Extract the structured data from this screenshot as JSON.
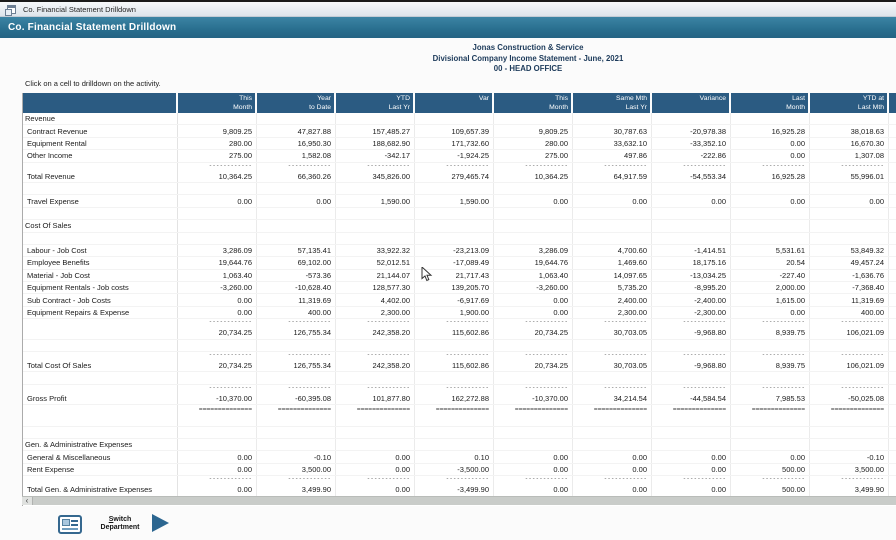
{
  "window": {
    "tab_title": "Co. Financial Statement Drilldown",
    "title_bar": "Co. Financial Statement Drilldown"
  },
  "report": {
    "company": "Jonas Construction & Service",
    "statement_title": "Divisional Company Income Statement - June, 2021",
    "division": "00 - HEAD OFFICE",
    "hint": "Click on a cell to drilldown on the activity."
  },
  "table": {
    "columns": [
      {
        "l1": "This",
        "l2": "Month"
      },
      {
        "l1": "Year",
        "l2": "to Date"
      },
      {
        "l1": "YTD",
        "l2": "Last Yr"
      },
      {
        "l1": "Var",
        "l2": ""
      },
      {
        "l1": "This",
        "l2": "Month"
      },
      {
        "l1": "Same Mth",
        "l2": "Last Yr"
      },
      {
        "l1": "Variance",
        "l2": ""
      },
      {
        "l1": "Last",
        "l2": "Month"
      },
      {
        "l1": "YTD at",
        "l2": "Last Mth"
      }
    ],
    "separators": {
      "single": "------------",
      "double": "=============="
    },
    "rows": [
      {
        "type": "section",
        "label": "Revenue"
      },
      {
        "type": "data",
        "label": "Contract Revenue",
        "values": [
          "9,809.25",
          "47,827.88",
          "157,485.27",
          "109,657.39",
          "9,809.25",
          "30,787.63",
          "-20,978.38",
          "16,925.28",
          "38,018.63"
        ]
      },
      {
        "type": "data",
        "label": "Equipment Rental",
        "values": [
          "280.00",
          "16,950.30",
          "188,682.90",
          "171,732.60",
          "280.00",
          "33,632.10",
          "-33,352.10",
          "0.00",
          "16,670.30"
        ]
      },
      {
        "type": "data",
        "label": "Other Income",
        "values": [
          "275.00",
          "1,582.08",
          "-342.17",
          "-1,924.25",
          "275.00",
          "497.86",
          "-222.86",
          "0.00",
          "1,307.08"
        ]
      },
      {
        "type": "sep"
      },
      {
        "type": "data",
        "label": "Total Revenue",
        "values": [
          "10,364.25",
          "66,360.26",
          "345,826.00",
          "279,465.74",
          "10,364.25",
          "64,917.59",
          "-54,553.34",
          "16,925.28",
          "55,996.01"
        ]
      },
      {
        "type": "blank"
      },
      {
        "type": "data",
        "label": "Travel Expense",
        "values": [
          "0.00",
          "0.00",
          "1,590.00",
          "1,590.00",
          "0.00",
          "0.00",
          "0.00",
          "0.00",
          "0.00"
        ]
      },
      {
        "type": "blank"
      },
      {
        "type": "section",
        "label": "Cost Of Sales"
      },
      {
        "type": "blank"
      },
      {
        "type": "data",
        "label": "Labour - Job Cost",
        "values": [
          "3,286.09",
          "57,135.41",
          "33,922.32",
          "-23,213.09",
          "3,286.09",
          "4,700.60",
          "-1,414.51",
          "5,531.61",
          "53,849.32"
        ]
      },
      {
        "type": "data",
        "label": "Employee Benefits",
        "values": [
          "19,644.76",
          "69,102.00",
          "52,012.51",
          "-17,089.49",
          "19,644.76",
          "1,469.60",
          "18,175.16",
          "20.54",
          "49,457.24"
        ]
      },
      {
        "type": "data",
        "label": "Material - Job Cost",
        "values": [
          "1,063.40",
          "-573.36",
          "21,144.07",
          "21,717.43",
          "1,063.40",
          "14,097.65",
          "-13,034.25",
          "-227.40",
          "-1,636.76"
        ]
      },
      {
        "type": "data",
        "label": "Equipment Rentals - Job costs",
        "values": [
          "-3,260.00",
          "-10,628.40",
          "128,577.30",
          "139,205.70",
          "-3,260.00",
          "5,735.20",
          "-8,995.20",
          "2,000.00",
          "-7,368.40"
        ]
      },
      {
        "type": "data",
        "label": "Sub Contract - Job Costs",
        "values": [
          "0.00",
          "11,319.69",
          "4,402.00",
          "-6,917.69",
          "0.00",
          "2,400.00",
          "-2,400.00",
          "1,615.00",
          "11,319.69"
        ]
      },
      {
        "type": "data",
        "label": "Equipment Repairs & Expense",
        "values": [
          "0.00",
          "400.00",
          "2,300.00",
          "1,900.00",
          "0.00",
          "2,300.00",
          "-2,300.00",
          "0.00",
          "400.00"
        ]
      },
      {
        "type": "sep"
      },
      {
        "type": "data",
        "label": "",
        "values": [
          "20,734.25",
          "126,755.34",
          "242,358.20",
          "115,602.86",
          "20,734.25",
          "30,703.05",
          "-9,968.80",
          "8,939.75",
          "106,021.09"
        ]
      },
      {
        "type": "blank"
      },
      {
        "type": "sep"
      },
      {
        "type": "data",
        "label": "Total Cost Of Sales",
        "values": [
          "20,734.25",
          "126,755.34",
          "242,358.20",
          "115,602.86",
          "20,734.25",
          "30,703.05",
          "-9,968.80",
          "8,939.75",
          "106,021.09"
        ]
      },
      {
        "type": "blank"
      },
      {
        "type": "sep"
      },
      {
        "type": "data",
        "label": "Gross Profit",
        "values": [
          "-10,370.00",
          "-60,395.08",
          "101,877.80",
          "162,272.88",
          "-10,370.00",
          "34,214.54",
          "-44,584.54",
          "7,985.53",
          "-50,025.08"
        ]
      },
      {
        "type": "dsep"
      },
      {
        "type": "blank"
      },
      {
        "type": "blank"
      },
      {
        "type": "section",
        "label": "Gen. & Administrative Expenses"
      },
      {
        "type": "data",
        "label": "General & Miscellaneous",
        "values": [
          "0.00",
          "-0.10",
          "0.00",
          "0.10",
          "0.00",
          "0.00",
          "0.00",
          "0.00",
          "-0.10"
        ]
      },
      {
        "type": "data",
        "label": "Rent Expense",
        "values": [
          "0.00",
          "3,500.00",
          "0.00",
          "-3,500.00",
          "0.00",
          "0.00",
          "0.00",
          "500.00",
          "3,500.00"
        ]
      },
      {
        "type": "sep"
      },
      {
        "type": "data",
        "label": "Total Gen. & Administrative Expenses",
        "values": [
          "0.00",
          "3,499.90",
          "0.00",
          "-3,499.90",
          "0.00",
          "0.00",
          "0.00",
          "500.00",
          "3,499.90"
        ]
      }
    ]
  },
  "scrollbar": {
    "left_arrow": "‹"
  },
  "footer": {
    "switch_line1": "Switch",
    "switch_line2": "Department"
  },
  "colors": {
    "title_bar": "#2a7090",
    "table_header": "#2b5b82",
    "accent_blue": "#2c6690"
  }
}
